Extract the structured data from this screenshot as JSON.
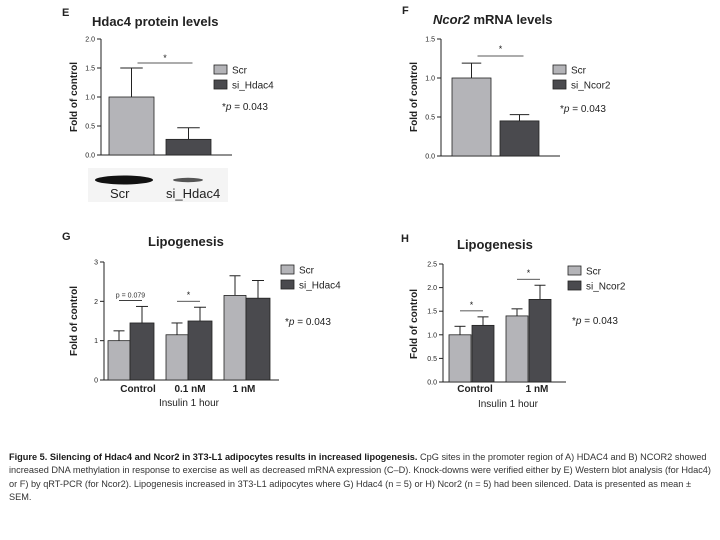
{
  "legend_colors": {
    "Scr": "#b4b4b8",
    "si": "#4a4a4e"
  },
  "caption": {
    "title": "Figure 5. Silencing of Hdac4 and Ncor2 in 3T3-L1 adipocytes results in increased lipogenesis.",
    "body": "CpG sites in the promoter region of A) HDAC4 and B) NCOR2 showed increased DNA methylation in response to exercise as well as decreased mRNA expression (C–D). Knock-downs were verified either by E) Western blot analysis (for Hdac4) or F) by qRT-PCR (for Ncor2). Lipogenesis increased in 3T3-L1 adipocytes where G) Hdac4 (n = 5) or H) Ncor2 (n = 5) had been silenced. Data is presented as mean ± SEM."
  },
  "blot": {
    "labels": [
      "Scr",
      "si_Hdac4"
    ]
  },
  "chart_data": [
    {
      "id": "E",
      "letter": "E",
      "type": "bar",
      "title": "Hdac4 protein levels",
      "title_italic_part": "",
      "ylabel": "Fold of control",
      "xlabel": "",
      "ylim": [
        0,
        2.0
      ],
      "yticks": [
        "0.0",
        "0.5",
        "1.0",
        "1.5",
        "2.0"
      ],
      "categories": [
        ""
      ],
      "series": [
        {
          "name": "Scr",
          "values": [
            1.0
          ],
          "errors": [
            0.5
          ]
        },
        {
          "name": "si_Hdac4",
          "values": [
            0.27
          ],
          "errors": [
            0.2
          ]
        }
      ],
      "significance": [
        {
          "label": "*"
        }
      ],
      "pvalue": "*p = 0.043"
    },
    {
      "id": "F",
      "letter": "F",
      "type": "bar",
      "title": " mRNA levels",
      "title_italic_part": "Ncor2",
      "ylabel": "Fold of control",
      "xlabel": "",
      "ylim": [
        0,
        1.5
      ],
      "yticks": [
        "0.0",
        "0.5",
        "1.0",
        "1.5"
      ],
      "categories": [
        ""
      ],
      "series": [
        {
          "name": "Scr",
          "values": [
            1.0
          ],
          "errors": [
            0.19
          ]
        },
        {
          "name": "si_Ncor2",
          "values": [
            0.45
          ],
          "errors": [
            0.08
          ]
        }
      ],
      "significance": [
        {
          "label": "*"
        }
      ],
      "pvalue": "*p = 0.043"
    },
    {
      "id": "G",
      "letter": "G",
      "type": "bar",
      "title": "Lipogenesis",
      "title_italic_part": "",
      "ylabel": "Fold of control",
      "xlabel": "Insulin 1 hour",
      "ylim": [
        0,
        3
      ],
      "yticks": [
        "0",
        "1",
        "2",
        "3"
      ],
      "categories": [
        "Control",
        "0.1 nM",
        "1 nM"
      ],
      "series": [
        {
          "name": "Scr",
          "values": [
            1.0,
            1.15,
            2.15
          ],
          "errors": [
            0.25,
            0.3,
            0.5
          ]
        },
        {
          "name": "si_Hdac4",
          "values": [
            1.45,
            1.5,
            2.08
          ],
          "errors": [
            0.42,
            0.35,
            0.45
          ]
        }
      ],
      "significance": [
        {
          "label": "p = 0.079",
          "category": 0
        },
        {
          "label": "*",
          "category": 1
        }
      ],
      "pvalue": "*p = 0.043"
    },
    {
      "id": "H",
      "letter": "H",
      "type": "bar",
      "title": "Lipogenesis",
      "title_italic_part": "",
      "ylabel": "Fold of control",
      "xlabel": "Insulin 1 hour",
      "ylim": [
        0,
        2.5
      ],
      "yticks": [
        "0.0",
        "0.5",
        "1.0",
        "1.5",
        "2.0",
        "2.5"
      ],
      "categories": [
        "Control",
        "1 nM"
      ],
      "series": [
        {
          "name": "Scr",
          "values": [
            1.0,
            1.4
          ],
          "errors": [
            0.18,
            0.15
          ]
        },
        {
          "name": "si_Ncor2",
          "values": [
            1.2,
            1.75
          ],
          "errors": [
            0.18,
            0.3
          ]
        }
      ],
      "significance": [
        {
          "label": "*",
          "category": 0
        },
        {
          "label": "*",
          "category": 1
        }
      ],
      "pvalue": "*p = 0.043"
    }
  ]
}
